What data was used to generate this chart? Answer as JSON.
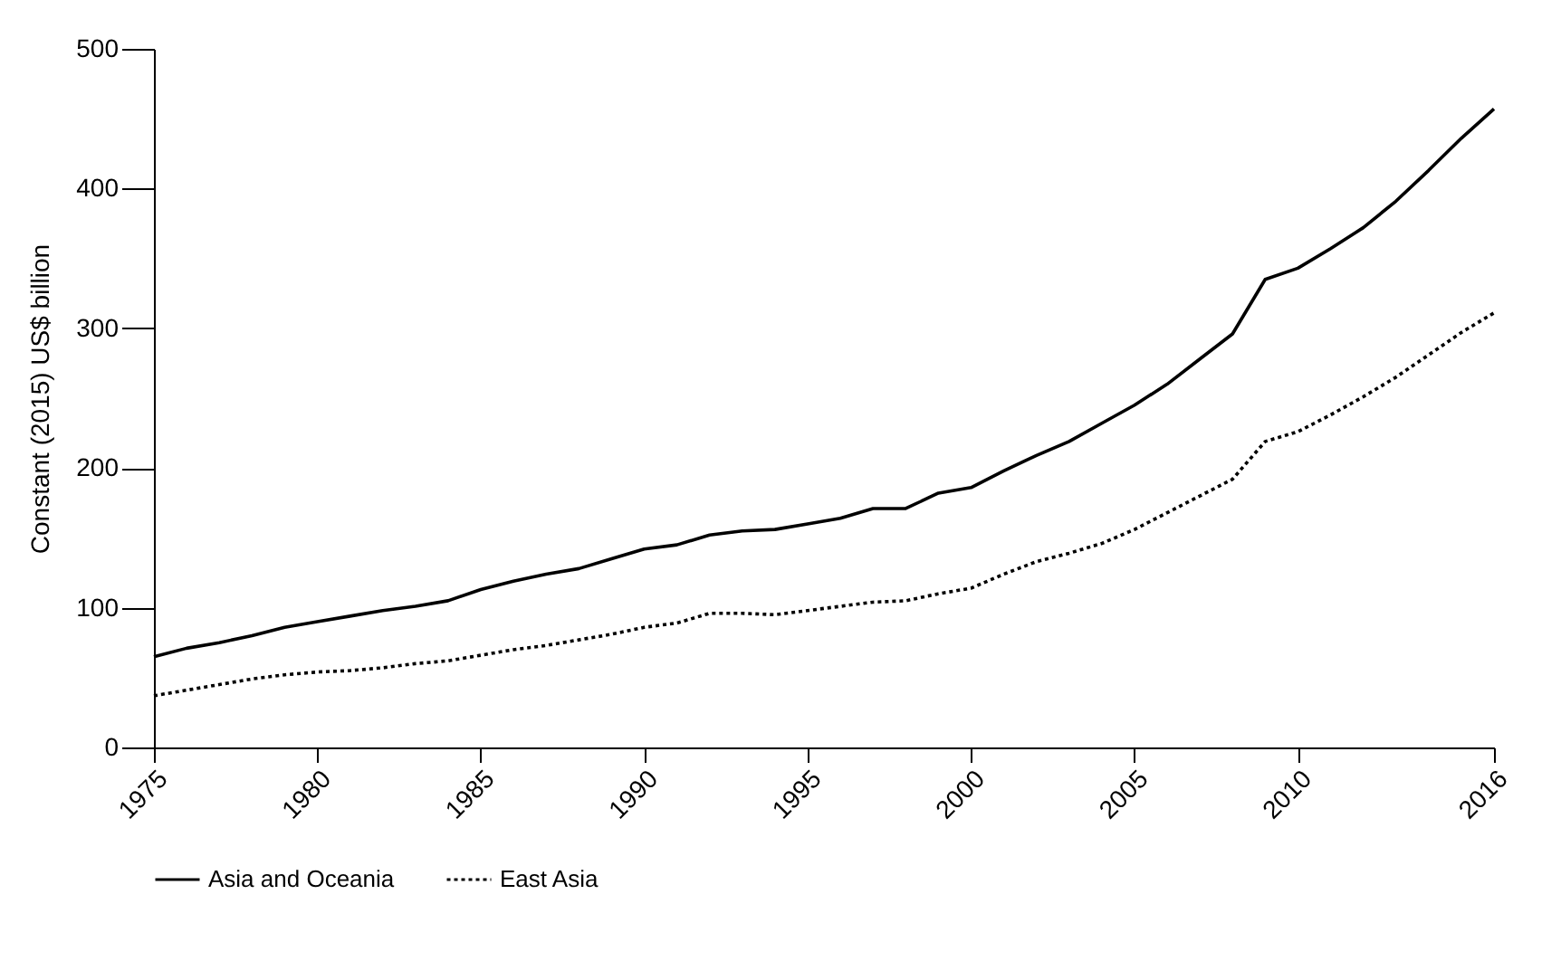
{
  "chart_data": {
    "type": "line",
    "ylabel": "Constant (2015) US$ billion",
    "x": [
      1975,
      1976,
      1977,
      1978,
      1979,
      1980,
      1981,
      1982,
      1983,
      1984,
      1985,
      1986,
      1987,
      1988,
      1989,
      1990,
      1991,
      1992,
      1993,
      1994,
      1995,
      1996,
      1997,
      1998,
      1999,
      2000,
      2001,
      2002,
      2003,
      2004,
      2005,
      2006,
      2007,
      2008,
      2009,
      2010,
      2011,
      2012,
      2013,
      2014,
      2015,
      2016
    ],
    "series": [
      {
        "name": "Asia and Oceania",
        "color": "#000000",
        "line_style": "solid",
        "values": [
          65,
          71,
          75,
          80,
          86,
          90,
          94,
          98,
          101,
          105,
          113,
          119,
          124,
          128,
          135,
          142,
          145,
          152,
          155,
          156,
          160,
          164,
          171,
          171,
          182,
          186,
          198,
          209,
          219,
          232,
          245,
          260,
          278,
          296,
          335,
          343,
          357,
          372,
          391,
          413,
          436,
          457
        ]
      },
      {
        "name": "East Asia",
        "color": "#000000",
        "line_style": "dotted",
        "values": [
          37,
          41,
          45,
          49,
          52,
          54,
          55,
          57,
          60,
          62,
          66,
          70,
          73,
          77,
          81,
          86,
          89,
          96,
          96,
          95,
          98,
          101,
          104,
          105,
          110,
          114,
          124,
          133,
          139,
          146,
          156,
          168,
          180,
          192,
          219,
          226,
          238,
          251,
          265,
          281,
          297,
          311
        ]
      }
    ],
    "xlim": [
      1975,
      2016
    ],
    "xticks": [
      1975,
      1980,
      1985,
      1990,
      1995,
      2000,
      2005,
      2010,
      2016
    ],
    "ylim": [
      0,
      500
    ],
    "yticks": [
      0,
      100,
      200,
      300,
      400,
      500
    ],
    "grid": false,
    "legend": "bottom"
  }
}
